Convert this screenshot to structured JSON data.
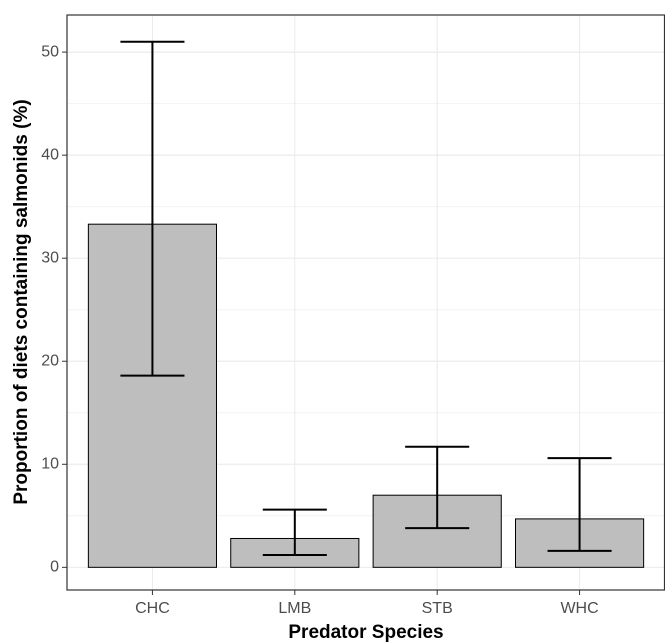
{
  "chart_data": {
    "type": "bar",
    "x_label": "Predator Species",
    "y_label": "Proportion of diets containing salmonids (%)",
    "categories": [
      "CHC",
      "LMB",
      "STB",
      "WHC"
    ],
    "values": [
      33.3,
      2.8,
      7.0,
      4.7
    ],
    "lower": [
      18.6,
      1.2,
      3.8,
      1.6
    ],
    "upper": [
      51.0,
      5.6,
      11.7,
      10.6
    ],
    "color": "#bebebe",
    "ylim": [
      -2.2,
      53.6
    ],
    "yticks": [
      0,
      10,
      20,
      30,
      40,
      50
    ],
    "grid": true
  }
}
